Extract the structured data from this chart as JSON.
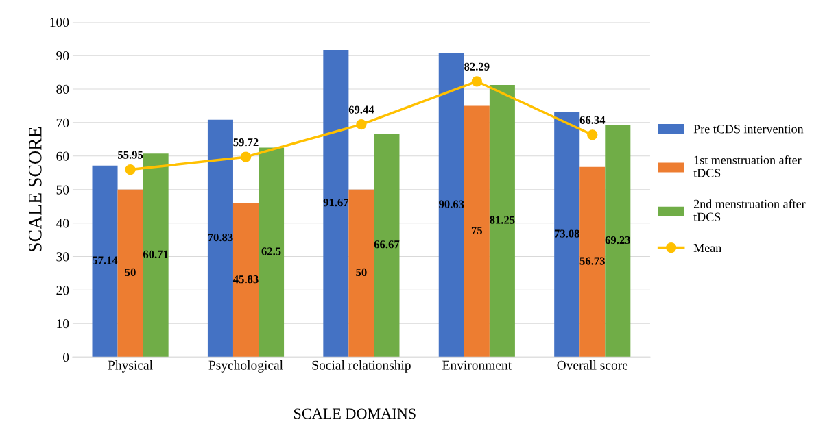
{
  "chart_data": {
    "type": "bar",
    "xlabel": "SCALE DOMAINS",
    "ylabel": "SCALE SCORE",
    "categories": [
      "Physical",
      "Psychological",
      "Social relationship",
      "Environment",
      "Overall score"
    ],
    "series": [
      {
        "name": "Pre tCDS intervention",
        "color": "#4472c4",
        "values": [
          57.14,
          70.83,
          91.67,
          90.63,
          73.08
        ]
      },
      {
        "name": "1st menstruation after tDCS",
        "color": "#ed7d31",
        "values": [
          50,
          45.83,
          50,
          75,
          56.73
        ]
      },
      {
        "name": "2nd menstruation after tDCS",
        "color": "#70ad47",
        "values": [
          60.71,
          62.5,
          66.67,
          81.25,
          69.23
        ]
      },
      {
        "name": "Mean",
        "type": "line",
        "color": "#ffc000",
        "marker": "circle",
        "values": [
          55.95,
          59.72,
          69.44,
          82.29,
          66.34
        ]
      }
    ],
    "ylim": [
      0,
      100
    ],
    "yticks": [
      0,
      10,
      20,
      30,
      40,
      50,
      60,
      70,
      80,
      90,
      100
    ],
    "grid": "y",
    "legend": "right",
    "data_labels": true
  }
}
